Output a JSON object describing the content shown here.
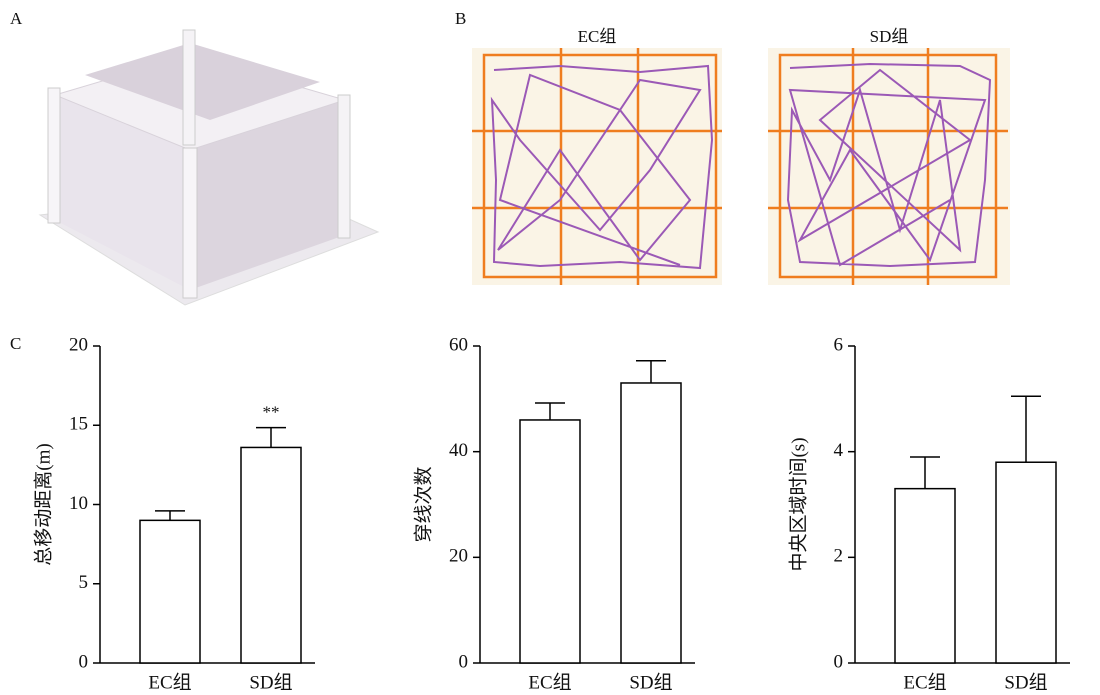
{
  "panel_labels": [
    "A",
    "B",
    "C"
  ],
  "tracks": {
    "titles": [
      "EC组",
      "SD组"
    ]
  },
  "chart_data": [
    {
      "type": "bar",
      "ylabel": "总移动距离(m)",
      "categories": [
        "EC组",
        "SD组"
      ],
      "values": [
        9.0,
        13.6
      ],
      "errors": [
        0.6,
        1.25
      ],
      "value_annotations": [
        null,
        "**"
      ],
      "color": "#ffffff",
      "ylim": [
        0,
        20
      ],
      "yticks": [
        0,
        5,
        10,
        15,
        20
      ]
    },
    {
      "type": "bar",
      "ylabel": "穿线次数",
      "categories": [
        "EC组",
        "SD组"
      ],
      "values": [
        46,
        53
      ],
      "errors": [
        3.2,
        4.2
      ],
      "color": "#ffffff",
      "ylim": [
        0,
        60
      ],
      "yticks": [
        0,
        20,
        40,
        60
      ]
    },
    {
      "type": "bar",
      "ylabel": "中央区域时间(s)",
      "categories": [
        "EC组",
        "SD组"
      ],
      "values": [
        3.3,
        3.8
      ],
      "errors": [
        0.6,
        1.25
      ],
      "color": "#ffffff",
      "ylim": [
        0,
        6
      ],
      "yticks": [
        0,
        2,
        4,
        6
      ]
    }
  ]
}
